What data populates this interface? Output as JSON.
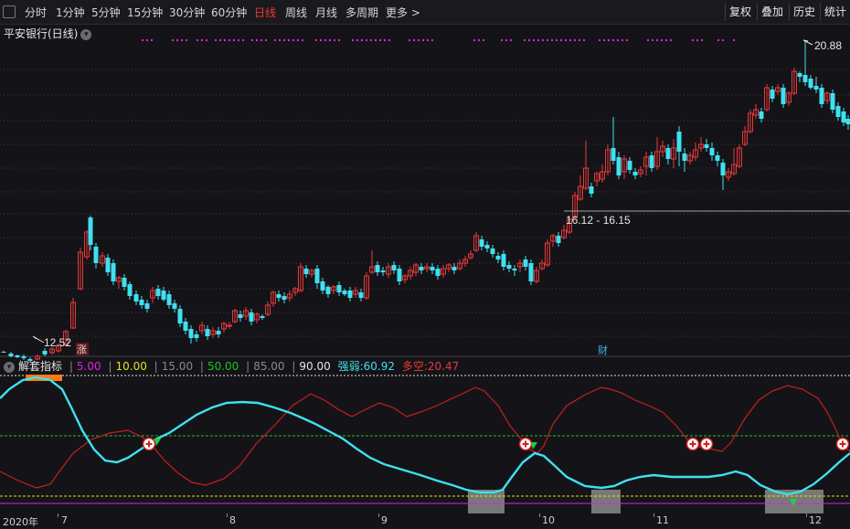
{
  "toolbar": {
    "items": [
      "分时",
      "1分钟",
      "5分钟",
      "15分钟",
      "30分钟",
      "60分钟",
      "日线",
      "周线",
      "月线",
      "多周期",
      "更多 >"
    ],
    "active": "日线",
    "right_items": [
      "复权",
      "叠加",
      "历史",
      "统计"
    ]
  },
  "stock": {
    "name": "平安银行(日线)"
  },
  "markers": {
    "zhang": "涨",
    "cai": "财"
  },
  "price_labels": {
    "high": "20.88",
    "low": "12.52",
    "range": "16.12 - 16.15"
  },
  "indicator": {
    "name": "解套指标",
    "levels": [
      "5.00",
      "10.00",
      "15.00",
      "50.00",
      "85.00",
      "90.00"
    ],
    "qiangruo_label": "强弱:",
    "qiangruo_value": "60.92",
    "duokong_label": "多空:",
    "duokong_value": "20.47"
  },
  "xaxis": {
    "labels": [
      "2020年",
      "7",
      "8",
      "9",
      "10",
      "11",
      "12"
    ]
  },
  "colors": {
    "up": "#e8383a",
    "down": "#40e0f0",
    "qiangruo": "#40e0f0",
    "duokong": "#c81e1e",
    "magenta": "#e020e0",
    "green_line": "#20c020",
    "yellow_line": "#e0e020"
  }
}
